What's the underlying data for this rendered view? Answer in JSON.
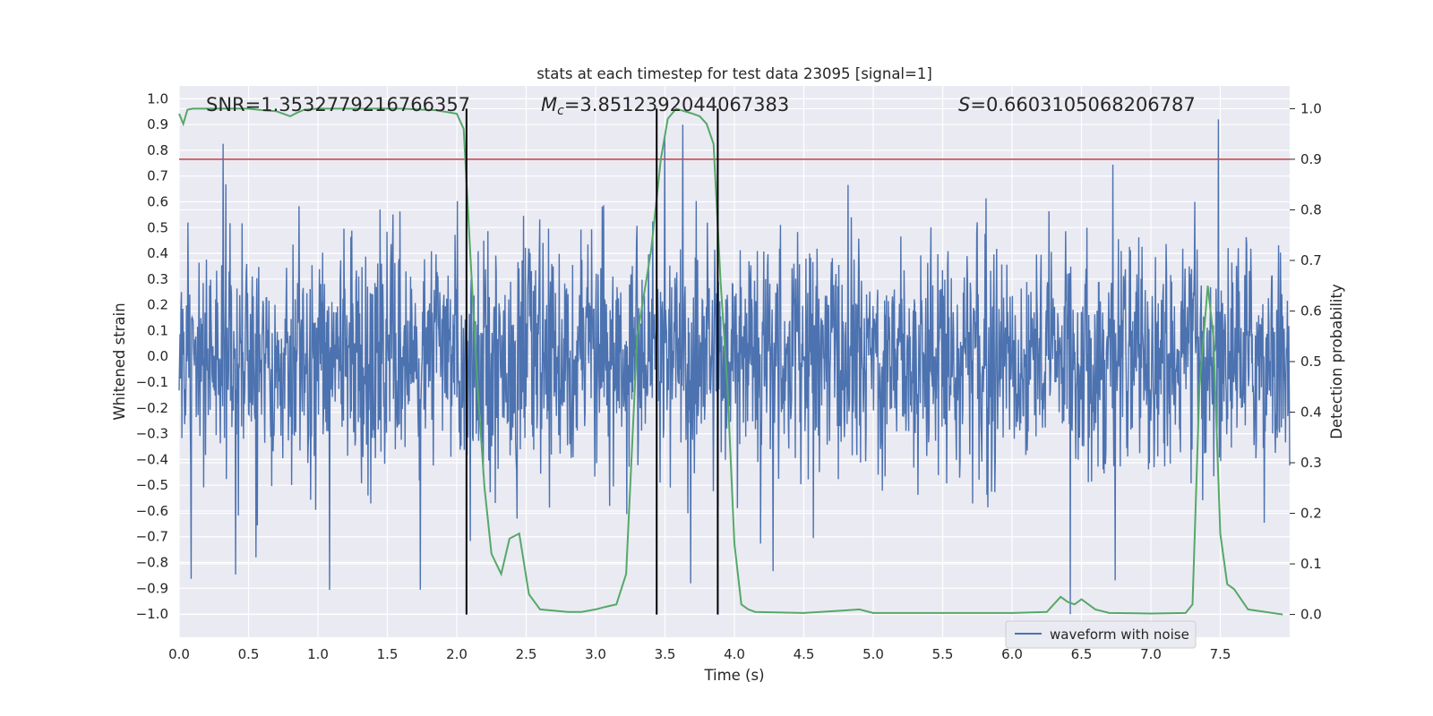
{
  "chart_data": {
    "type": "line",
    "title": "stats at each timestep for test data 23095 [signal=1]",
    "xlabel": "Time (s)",
    "ylabel_left": "Whitened strain",
    "ylabel_right": "Detection probability",
    "xlim": [
      0,
      8
    ],
    "ylim_left": [
      -1.09,
      1.05
    ],
    "ylim_right": [
      -0.045,
      1.045
    ],
    "x_ticks": [
      "0.0",
      "0.5",
      "1.0",
      "1.5",
      "2.0",
      "2.5",
      "3.0",
      "3.5",
      "4.0",
      "4.5",
      "5.0",
      "5.5",
      "6.0",
      "6.5",
      "7.0",
      "7.5"
    ],
    "y_left_ticks": [
      "1.0",
      "0.9",
      "0.8",
      "0.7",
      "0.6",
      "0.5",
      "0.4",
      "0.3",
      "0.2",
      "0.1",
      "0.0",
      "−0.1",
      "−0.2",
      "−0.3",
      "−0.4",
      "−0.5",
      "−0.6",
      "−0.7",
      "−0.8",
      "−0.9",
      "−1.0"
    ],
    "y_right_ticks": [
      "0.0",
      "0.1",
      "0.2",
      "0.3",
      "0.4",
      "0.5",
      "0.6",
      "0.7",
      "0.8",
      "0.9",
      "1.0"
    ],
    "grid": true,
    "legend": {
      "placement": "lower-right",
      "entries": [
        "waveform with noise"
      ]
    },
    "annotations": {
      "snr": "SNR=1.3532779216766357",
      "mc_symbol": "M",
      "mc_sub": "c",
      "mc_value": "=3.8512392044067383",
      "s_symbol": "S",
      "s_value": "=0.6603105068206787"
    },
    "threshold": {
      "value": 0.9,
      "axis": "right",
      "color": "#c44e52"
    },
    "vlines": [
      2.07,
      3.44,
      3.88
    ],
    "series": [
      {
        "name": "waveform with noise",
        "axis": "left",
        "color": "#4c72b0",
        "kind": "noise",
        "sample_count": 2400,
        "typical_amplitude": 0.42,
        "max_abs": 1.0
      },
      {
        "axis": "right",
        "color": "#55a868",
        "x": [
          0.0,
          0.03,
          0.06,
          0.1,
          0.15,
          0.2,
          0.5,
          0.6,
          0.7,
          0.8,
          0.85,
          0.9,
          1.0,
          1.3,
          1.6,
          1.75,
          1.85,
          2.0,
          2.05,
          2.1,
          2.15,
          2.2,
          2.25,
          2.32,
          2.38,
          2.45,
          2.52,
          2.6,
          2.8,
          2.9,
          3.0,
          3.07,
          3.15,
          3.22,
          3.3,
          3.4,
          3.47,
          3.52,
          3.58,
          3.7,
          3.75,
          3.8,
          3.85,
          3.9,
          3.95,
          4.0,
          4.05,
          4.1,
          4.15,
          4.5,
          4.8,
          4.9,
          5.0,
          5.5,
          6.0,
          6.25,
          6.3,
          6.35,
          6.4,
          6.45,
          6.5,
          6.6,
          6.7,
          7.0,
          7.25,
          7.3,
          7.35,
          7.41,
          7.45,
          7.5,
          7.55,
          7.6,
          7.7,
          7.95
        ],
        "y": [
          0.99,
          0.97,
          0.998,
          1.0,
          1.0,
          1.0,
          1.0,
          0.997,
          0.995,
          0.985,
          0.992,
          0.998,
          1.0,
          1.0,
          1.0,
          0.998,
          0.997,
          0.99,
          0.96,
          0.7,
          0.45,
          0.25,
          0.12,
          0.08,
          0.15,
          0.16,
          0.04,
          0.01,
          0.005,
          0.005,
          0.01,
          0.015,
          0.02,
          0.08,
          0.55,
          0.72,
          0.9,
          0.98,
          1.0,
          0.99,
          0.985,
          0.97,
          0.93,
          0.66,
          0.45,
          0.14,
          0.02,
          0.01,
          0.005,
          0.003,
          0.008,
          0.01,
          0.003,
          0.003,
          0.003,
          0.005,
          0.02,
          0.035,
          0.025,
          0.02,
          0.03,
          0.01,
          0.003,
          0.002,
          0.003,
          0.02,
          0.45,
          0.65,
          0.55,
          0.16,
          0.06,
          0.05,
          0.01,
          0.0
        ]
      }
    ]
  }
}
